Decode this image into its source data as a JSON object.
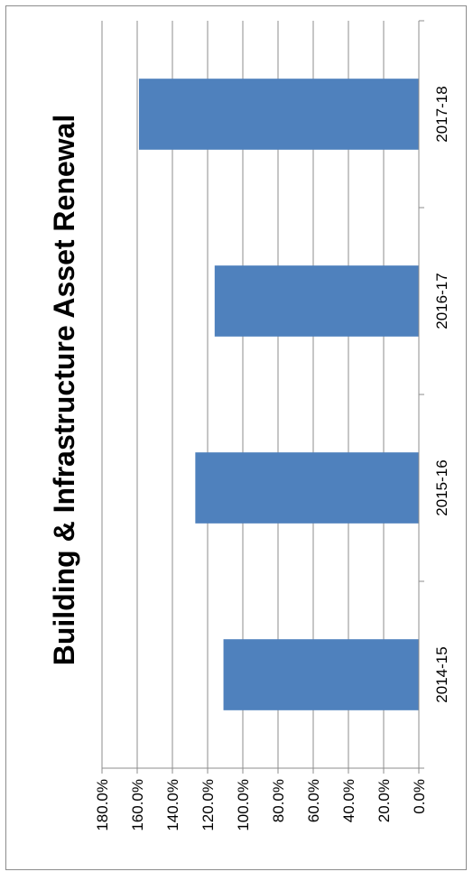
{
  "chart_data": {
    "type": "bar",
    "orientation": "horizontal-rotated",
    "title": "Building & Infrastructure Asset Renewal",
    "categories": [
      "2014-15",
      "2015-16",
      "2016-17",
      "2017-18"
    ],
    "values": [
      111,
      127,
      116,
      159
    ],
    "value_unit": "%",
    "ylim": [
      0,
      180
    ],
    "y_ticks": [
      "0.0%",
      "20.0%",
      "40.0%",
      "60.0%",
      "80.0%",
      "100.0%",
      "120.0%",
      "140.0%",
      "160.0%",
      "180.0%"
    ],
    "grid": true,
    "legend": "none",
    "bar_color": "#4f81bd"
  }
}
